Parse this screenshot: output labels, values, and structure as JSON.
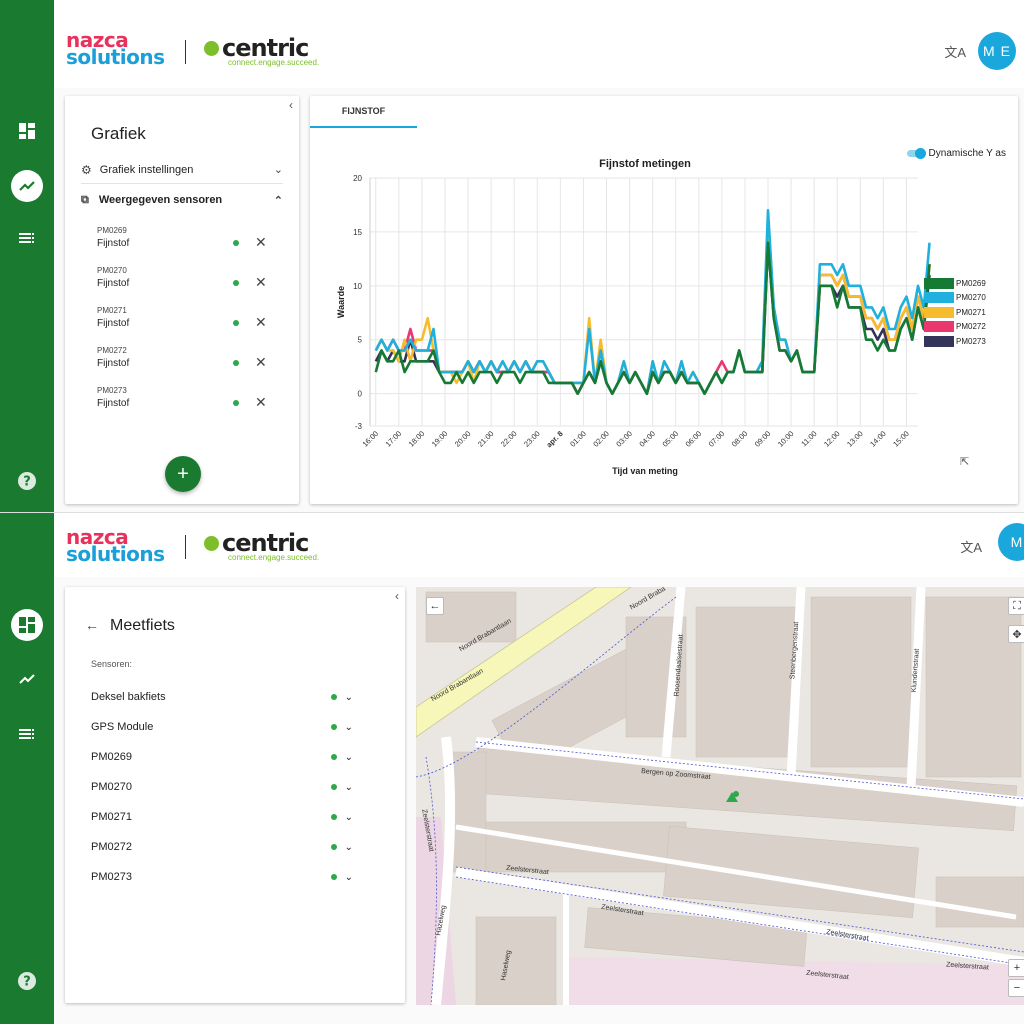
{
  "brand": {
    "nazca_line1": "nazca",
    "nazca_line2": "solutions",
    "centric": "centric",
    "centric_tagline": "connect.engage.succeed."
  },
  "user": {
    "initials": "M E",
    "initials_short": "M"
  },
  "translate_icon": "文A",
  "top": {
    "panel_title": "Grafiek",
    "settings_label": "Grafiek instellingen",
    "sensors_label": "Weergegeven sensoren",
    "sensors": [
      {
        "id": "PM0269",
        "type": "Fijnstof"
      },
      {
        "id": "PM0270",
        "type": "Fijnstof"
      },
      {
        "id": "PM0271",
        "type": "Fijnstof"
      },
      {
        "id": "PM0272",
        "type": "Fijnstof"
      },
      {
        "id": "PM0273",
        "type": "Fijnstof"
      }
    ],
    "add_label": "+",
    "tab_label": "FIJNSTOF",
    "toggle_label": "Dynamische Y as"
  },
  "chart_data": {
    "type": "line",
    "title": "Fijnstof metingen",
    "xlabel": "Tijd van meting",
    "ylabel": "Waarde",
    "ylim": [
      -3,
      20
    ],
    "yticks": [
      -3,
      0,
      5,
      10,
      15,
      20
    ],
    "grid": true,
    "legend": "right",
    "x_tick_labels": [
      "16:00",
      "17:00",
      "18:00",
      "19:00",
      "20:00",
      "21:00",
      "22:00",
      "23:00",
      "apr. 8",
      "01:00",
      "02:00",
      "03:00",
      "04:00",
      "05:00",
      "06:00",
      "07:00",
      "08:00",
      "09:00",
      "10:00",
      "11:00",
      "12:00",
      "13:00",
      "14:00",
      "15:00"
    ],
    "x_tick_positions": [
      0,
      4,
      8,
      12,
      16,
      20,
      24,
      28,
      32,
      36,
      40,
      44,
      48,
      52,
      56,
      60,
      64,
      68,
      72,
      76,
      80,
      84,
      88,
      92
    ],
    "x_range": [
      -1,
      94
    ],
    "series": [
      {
        "name": "PM0273",
        "color": "#34335a",
        "values": [
          3,
          4,
          3,
          4,
          3,
          3,
          5,
          3,
          3,
          3,
          3,
          2,
          2,
          2,
          2,
          2,
          3,
          2,
          3,
          2,
          3,
          2,
          2,
          2,
          3,
          2,
          3,
          2,
          2,
          2,
          2,
          1,
          1,
          1,
          1,
          0,
          1,
          2,
          1,
          3,
          1,
          0,
          1,
          2,
          1,
          2,
          1,
          0,
          2,
          1,
          2,
          2,
          1,
          2,
          1,
          1,
          1,
          0,
          1,
          2,
          1,
          2,
          2,
          4,
          2,
          2,
          2,
          2,
          14,
          7,
          4,
          4,
          3,
          4,
          2,
          2,
          2,
          10,
          10,
          10,
          9,
          10,
          8,
          8,
          8,
          6,
          6,
          5,
          6,
          4,
          4,
          6,
          7,
          5,
          8,
          6,
          11
        ]
      },
      {
        "name": "PM0272",
        "color": "#e8386d",
        "values": [
          4,
          5,
          4,
          5,
          4,
          4,
          6,
          4,
          4,
          4,
          4,
          2,
          2,
          2,
          2,
          2,
          3,
          2,
          3,
          2,
          3,
          2,
          2,
          2,
          3,
          2,
          3,
          2,
          2,
          2,
          2,
          1,
          1,
          1,
          1,
          0,
          1,
          2,
          1,
          4,
          1,
          0,
          1,
          2,
          1,
          2,
          1,
          0,
          2,
          1,
          2,
          2,
          1,
          2,
          1,
          1,
          1,
          0,
          1,
          2,
          3,
          2,
          2,
          4,
          2,
          2,
          2,
          2,
          15,
          8,
          4,
          4,
          3,
          4,
          2,
          2,
          2,
          11,
          11,
          11,
          10,
          11,
          9,
          9,
          9,
          7,
          7,
          6,
          7,
          5,
          5,
          7,
          8,
          6,
          9,
          7,
          12
        ]
      },
      {
        "name": "PM0271",
        "color": "#f7bb2e",
        "values": [
          4,
          5,
          4,
          4,
          3,
          5,
          3,
          5,
          5,
          7,
          4,
          2,
          2,
          2,
          1,
          2,
          3,
          1,
          3,
          2,
          3,
          2,
          3,
          2,
          3,
          2,
          3,
          2,
          3,
          3,
          2,
          1,
          1,
          1,
          1,
          1,
          1,
          7,
          1,
          5,
          1,
          0,
          1,
          3,
          1,
          2,
          1,
          0,
          3,
          1,
          3,
          2,
          1,
          3,
          1,
          2,
          1,
          0,
          1,
          2,
          1,
          2,
          2,
          4,
          2,
          2,
          2,
          3,
          16,
          8,
          5,
          5,
          3,
          4,
          2,
          2,
          2,
          11,
          11,
          11,
          10,
          11,
          9,
          9,
          9,
          7,
          7,
          6,
          7,
          5,
          5,
          7,
          8,
          6,
          9,
          7,
          12
        ]
      },
      {
        "name": "PM0270",
        "color": "#1fb0de",
        "values": [
          4,
          5,
          4,
          5,
          4,
          4,
          5,
          4,
          4,
          4,
          6,
          2,
          2,
          2,
          2,
          2,
          3,
          2,
          3,
          2,
          3,
          2,
          3,
          2,
          3,
          2,
          3,
          2,
          3,
          3,
          2,
          1,
          1,
          1,
          1,
          1,
          1,
          6,
          1,
          4,
          1,
          0,
          1,
          3,
          1,
          2,
          1,
          0,
          3,
          1,
          3,
          2,
          1,
          3,
          1,
          2,
          1,
          0,
          1,
          2,
          1,
          2,
          2,
          4,
          2,
          2,
          2,
          3,
          17,
          8,
          5,
          5,
          3,
          4,
          2,
          2,
          2,
          12,
          12,
          12,
          11,
          12,
          10,
          10,
          10,
          8,
          8,
          7,
          8,
          6,
          6,
          8,
          9,
          7,
          10,
          8,
          14
        ]
      },
      {
        "name": "PM0269",
        "color": "#157a34",
        "values": [
          2,
          4,
          3,
          3,
          4,
          2,
          3,
          3,
          3,
          3,
          4,
          2,
          1,
          1,
          2,
          1,
          2,
          1,
          2,
          2,
          2,
          1,
          2,
          2,
          2,
          1,
          2,
          2,
          2,
          2,
          1,
          1,
          1,
          1,
          1,
          0,
          1,
          2,
          1,
          3,
          1,
          0,
          1,
          2,
          1,
          2,
          1,
          0,
          2,
          1,
          2,
          2,
          1,
          2,
          1,
          1,
          1,
          0,
          1,
          2,
          1,
          2,
          2,
          4,
          2,
          2,
          2,
          2,
          14,
          7,
          4,
          4,
          3,
          4,
          2,
          2,
          2,
          10,
          10,
          10,
          8,
          10,
          8,
          8,
          8,
          5,
          5,
          4,
          5,
          4,
          4,
          6,
          7,
          5,
          8,
          6,
          12
        ]
      }
    ]
  },
  "bottom": {
    "panel_title": "Meetfiets",
    "sensors_heading": "Sensoren:",
    "items": [
      "Deksel bakfiets",
      "GPS Module",
      "PM0269",
      "PM0270",
      "PM0271",
      "PM0272",
      "PM0273"
    ],
    "streets": [
      "Noord Brabantlaan",
      "Noord Brabantlaan",
      "Noord Braba",
      "Roosendaalsestraat",
      "Steenbergenstraat",
      "Klundertstraat",
      "Bergen op Zoomstraat",
      "Zeelsterstraat",
      "Zeelsterstraat",
      "Zeelsterstraat",
      "Zeelsterstraat",
      "Zeelsterstraat",
      "Zeelsterstraat",
      "Hazelweg",
      "Hazelweg",
      "Haselweg"
    ]
  }
}
